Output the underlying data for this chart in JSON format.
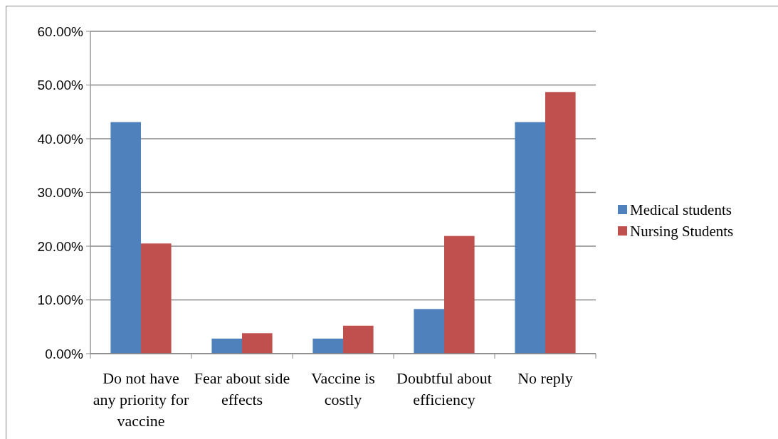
{
  "chart_data": {
    "type": "bar",
    "categories": [
      "Do not have any priority for vaccine",
      "Fear about side effects",
      "Vaccine is costly",
      "Doubtful about efficiency",
      "No reply"
    ],
    "series": [
      {
        "name": "Medical students",
        "color": "#4f81bd",
        "values": [
          43.1,
          2.8,
          2.8,
          8.3,
          43.1
        ]
      },
      {
        "name": "Nursing Students",
        "color": "#c0504d",
        "values": [
          20.5,
          3.8,
          5.2,
          21.9,
          48.7
        ]
      }
    ],
    "ylim": [
      0,
      60
    ],
    "yticks": [
      {
        "value": 0,
        "label": "0.00%"
      },
      {
        "value": 10,
        "label": "10.00%"
      },
      {
        "value": 20,
        "label": "20.00%"
      },
      {
        "value": 30,
        "label": "30.00%"
      },
      {
        "value": 40,
        "label": "40.00%"
      },
      {
        "value": 50,
        "label": "50.00%"
      },
      {
        "value": 60,
        "label": "60.00%"
      }
    ],
    "grid": "y",
    "legend": "right"
  }
}
